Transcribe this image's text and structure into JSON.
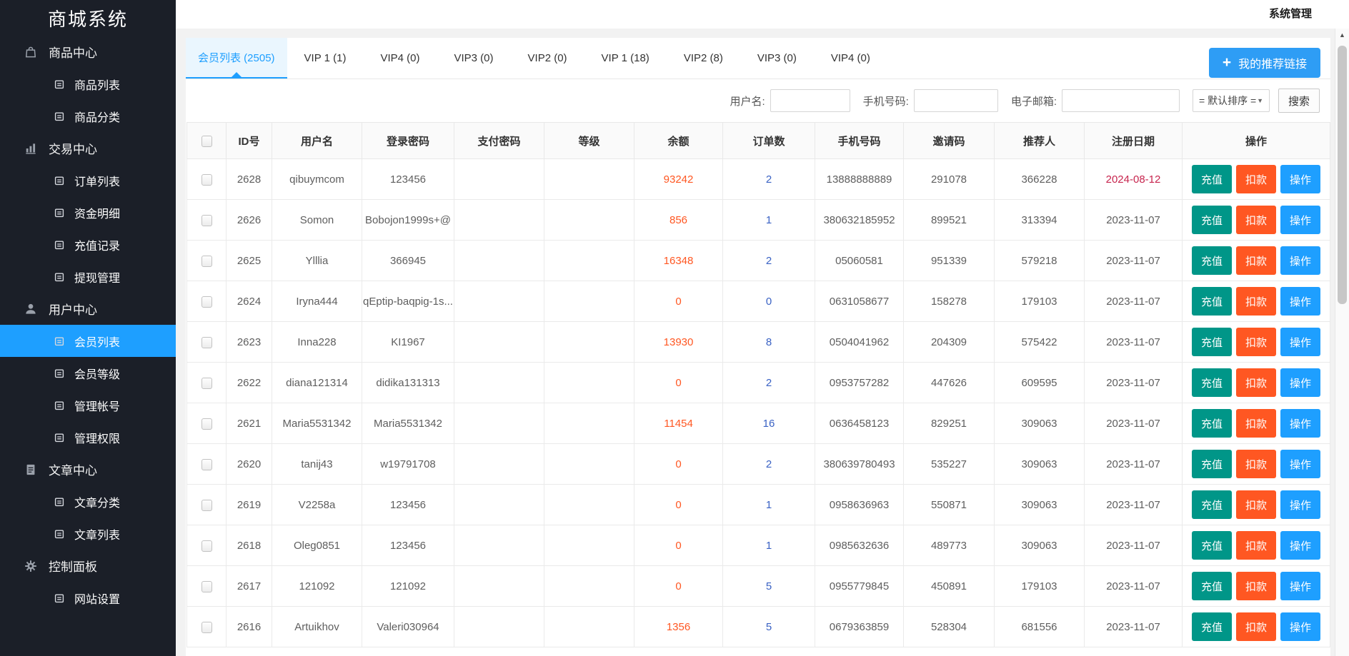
{
  "brand": "商城系统",
  "topbar": {
    "menu_label": "系统管理"
  },
  "sidebar": {
    "groups": [
      {
        "icon": "shopping-bag-icon",
        "label": "商品中心",
        "items": [
          {
            "label": "商品列表",
            "active": false
          },
          {
            "label": "商品分类",
            "active": false
          }
        ]
      },
      {
        "icon": "bar-chart-icon",
        "label": "交易中心",
        "items": [
          {
            "label": "订单列表",
            "active": false
          },
          {
            "label": "资金明细",
            "active": false
          },
          {
            "label": "充值记录",
            "active": false
          },
          {
            "label": "提现管理",
            "active": false
          }
        ]
      },
      {
        "icon": "user-icon",
        "label": "用户中心",
        "items": [
          {
            "label": "会员列表",
            "active": true
          },
          {
            "label": "会员等级",
            "active": false
          },
          {
            "label": "管理帐号",
            "active": false
          },
          {
            "label": "管理权限",
            "active": false
          }
        ]
      },
      {
        "icon": "document-icon",
        "label": "文章中心",
        "items": [
          {
            "label": "文章分类",
            "active": false
          },
          {
            "label": "文章列表",
            "active": false
          }
        ]
      },
      {
        "icon": "gear-icon",
        "label": "控制面板",
        "items": [
          {
            "label": "网站设置",
            "active": false
          }
        ]
      }
    ]
  },
  "tabs": [
    {
      "label": "会员列表 (2505)",
      "active": true
    },
    {
      "label": "VIP 1 (1)",
      "active": false
    },
    {
      "label": "VIP4 (0)",
      "active": false
    },
    {
      "label": "VIP3 (0)",
      "active": false
    },
    {
      "label": "VIP2 (0)",
      "active": false
    },
    {
      "label": "VIP 1 (18)",
      "active": false
    },
    {
      "label": "VIP2 (8)",
      "active": false
    },
    {
      "label": "VIP3 (0)",
      "active": false
    },
    {
      "label": "VIP4 (0)",
      "active": false
    }
  ],
  "referral_button": {
    "label": "我的推荐链接",
    "icon": "plus-icon",
    "icon_glyph": "+"
  },
  "filters": {
    "username_label": "用户名:",
    "username_value": "",
    "phone_label": "手机号码:",
    "phone_value": "",
    "email_label": "电子邮箱:",
    "email_value": "",
    "sort_selected": "= 默认排序 =",
    "sort_caret": "▼",
    "search_label": "搜索"
  },
  "table": {
    "columns": [
      "ID号",
      "用户名",
      "登录密码",
      "支付密码",
      "等级",
      "余额",
      "订单数",
      "手机号码",
      "邀请码",
      "推荐人",
      "注册日期",
      "操作"
    ],
    "action_buttons": [
      "充值",
      "扣款",
      "操作"
    ],
    "rows": [
      {
        "id": "2628",
        "username": "qibuymcom",
        "login_password": "123456",
        "pay_password": "",
        "level": "",
        "balance": "93242",
        "orders": "2",
        "phone": "13888888889",
        "invite_code": "291078",
        "referrer": "366228",
        "reg_date": "2024-08-12",
        "date_alert": true
      },
      {
        "id": "2626",
        "username": "Somon",
        "login_password": "Bobojon1999s+@",
        "pay_password": "",
        "level": "",
        "balance": "856",
        "orders": "1",
        "phone": "380632185952",
        "invite_code": "899521",
        "referrer": "313394",
        "reg_date": "2023-11-07",
        "date_alert": false
      },
      {
        "id": "2625",
        "username": "Ylllia",
        "login_password": "366945",
        "pay_password": "",
        "level": "",
        "balance": "16348",
        "orders": "2",
        "phone": "05060581",
        "invite_code": "951339",
        "referrer": "579218",
        "reg_date": "2023-11-07",
        "date_alert": false
      },
      {
        "id": "2624",
        "username": "Iryna444",
        "login_password": "qEptip-baqpig-1s...",
        "pay_password": "",
        "level": "",
        "balance": "0",
        "orders": "0",
        "phone": "0631058677",
        "invite_code": "158278",
        "referrer": "179103",
        "reg_date": "2023-11-07",
        "date_alert": false
      },
      {
        "id": "2623",
        "username": "Inna228",
        "login_password": "KI1967",
        "pay_password": "",
        "level": "",
        "balance": "13930",
        "orders": "8",
        "phone": "0504041962",
        "invite_code": "204309",
        "referrer": "575422",
        "reg_date": "2023-11-07",
        "date_alert": false
      },
      {
        "id": "2622",
        "username": "diana121314",
        "login_password": "didika131313",
        "pay_password": "",
        "level": "",
        "balance": "0",
        "orders": "2",
        "phone": "0953757282",
        "invite_code": "447626",
        "referrer": "609595",
        "reg_date": "2023-11-07",
        "date_alert": false
      },
      {
        "id": "2621",
        "username": "Maria5531342",
        "login_password": "Maria5531342",
        "pay_password": "",
        "level": "",
        "balance": "11454",
        "orders": "16",
        "phone": "0636458123",
        "invite_code": "829251",
        "referrer": "309063",
        "reg_date": "2023-11-07",
        "date_alert": false
      },
      {
        "id": "2620",
        "username": "tanij43",
        "login_password": "w19791708",
        "pay_password": "",
        "level": "",
        "balance": "0",
        "orders": "2",
        "phone": "380639780493",
        "invite_code": "535227",
        "referrer": "309063",
        "reg_date": "2023-11-07",
        "date_alert": false
      },
      {
        "id": "2619",
        "username": "V2258a",
        "login_password": "123456",
        "pay_password": "",
        "level": "",
        "balance": "0",
        "orders": "1",
        "phone": "0958636963",
        "invite_code": "550871",
        "referrer": "309063",
        "reg_date": "2023-11-07",
        "date_alert": false
      },
      {
        "id": "2618",
        "username": "Oleg0851",
        "login_password": "123456",
        "pay_password": "",
        "level": "",
        "balance": "0",
        "orders": "1",
        "phone": "0985632636",
        "invite_code": "489773",
        "referrer": "309063",
        "reg_date": "2023-11-07",
        "date_alert": false
      },
      {
        "id": "2617",
        "username": "121092",
        "login_password": "121092",
        "pay_password": "",
        "level": "",
        "balance": "0",
        "orders": "5",
        "phone": "0955779845",
        "invite_code": "450891",
        "referrer": "179103",
        "reg_date": "2023-11-07",
        "date_alert": false
      },
      {
        "id": "2616",
        "username": "Artuikhov",
        "login_password": "Valeri030964",
        "pay_password": "",
        "level": "",
        "balance": "1356",
        "orders": "5",
        "phone": "0679363859",
        "invite_code": "528304",
        "referrer": "681556",
        "reg_date": "2023-11-07",
        "date_alert": false
      }
    ]
  },
  "scrollbar": {
    "up_glyph": "▲"
  },
  "colors": {
    "accent": "#1E9FFF",
    "active_tab_bg": "#EAF6FE",
    "balance_text": "#FF5722",
    "orders_link": "#3A62C4",
    "alert_date": "#C7254E",
    "btn_recharge": "#009688",
    "btn_deduct": "#FF5722",
    "btn_action": "#1E9FFF",
    "sidebar_bg": "#1B1F28",
    "sidebar_active": "#1E9FFF"
  }
}
